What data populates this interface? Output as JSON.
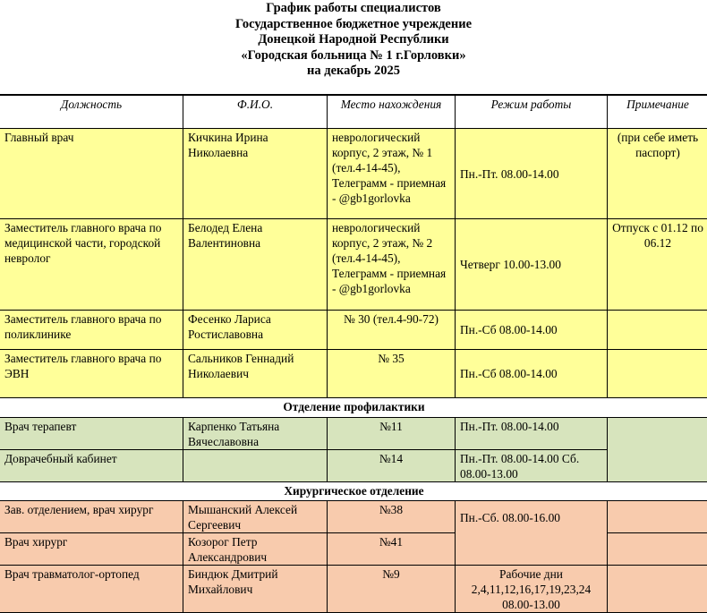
{
  "title": {
    "line1": "График работы специалистов",
    "line2": "Государственное бюджетное учреждение",
    "line3": "Донецкой Народной Республики",
    "line4": "«Городская больница № 1 г.Горловки»",
    "line5": "на декабрь 2025"
  },
  "headers": {
    "position": "Должность",
    "name": "Ф.И.О.",
    "location": "Место нахождения",
    "schedule": "Режим работы",
    "note": "Примечание"
  },
  "colors": {
    "administration": "#ffff99",
    "prevention": "#d7e4bd",
    "surgery": "#f8cbad"
  },
  "rows": [
    {
      "position": "Главный врач",
      "name": "Кичкина Ирина Николаевна",
      "location": "неврологический корпус, 2 этаж, № 1 (тел.4-14-45), Телеграмм - приемная - @gb1gorlovka",
      "schedule": "Пн.-Пт. 08.00-14.00",
      "note": "(при себе иметь паспорт)"
    },
    {
      "position": "Заместитель главного врача по медицинской части, городской невролог",
      "name": "Белодед Елена Валентиновна",
      "location": "неврологический корпус, 2 этаж, № 2 (тел.4-14-45), Телеграмм - приемная - @gb1gorlovka",
      "schedule": "Четверг 10.00-13.00",
      "note": "Отпуск с 01.12 по 06.12"
    },
    {
      "position": "Заместитель главного врача по поликлинике",
      "name": "Фесенко Лариса Ростиславовна",
      "location": "№ 30 (тел.4-90-72)",
      "schedule": "Пн.-Сб 08.00-14.00",
      "note": ""
    },
    {
      "position": "Заместитель главного врача по ЭВН",
      "name": "Сальников Геннадий Николаевич",
      "location": "№ 35",
      "schedule": "Пн.-Сб 08.00-14.00",
      "note": ""
    }
  ],
  "sections": [
    {
      "title": "Отделение профилактики",
      "rows": [
        {
          "position": "Врач терапевт",
          "name": "Карпенко Татьяна Вячеславовна",
          "location": "№11",
          "schedule": "Пн.-Пт. 08.00-14.00"
        },
        {
          "position": "Доврачебный кабинет",
          "name": "",
          "location": "№14",
          "schedule": "Пн.-Пт.  08.00-14.00 Сб. 08.00-13.00"
        }
      ]
    },
    {
      "title": "Хирургическое отделение",
      "rows": [
        {
          "position": "Зав. отделением, врач хирург",
          "name": "Мышанский Алексей Сергеевич",
          "location": "№38",
          "schedule": "Пн.-Сб. 08.00-16.00"
        },
        {
          "position": "Врач хирург",
          "name": "Козорог Петр Александрович",
          "location": "№41"
        },
        {
          "position": "Врач травматолог-ортопед",
          "name": "Биндюк Дмитрий Михайлович",
          "location": "№9",
          "schedule": "Рабочие дни 2,4,11,12,16,17,19,23,24 08.00-13.00"
        }
      ]
    }
  ]
}
